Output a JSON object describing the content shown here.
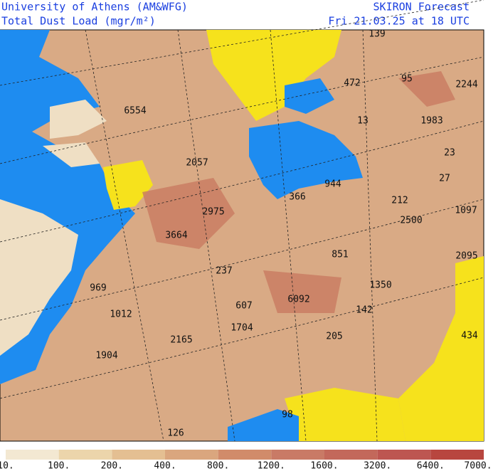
{
  "header": {
    "left": [
      "University of Athens (AM&WFG)",
      "Total Dust Load (mgr/m²)"
    ],
    "right": [
      "SKIRON Forecast",
      "Fri 21.03.25 at 18 UTC"
    ]
  },
  "map": {
    "labels": [
      139,
      6554,
      472,
      95,
      2244,
      13,
      1983,
      23,
      2057,
      27,
      366,
      944,
      212,
      2975,
      2500,
      1097,
      3664,
      851,
      2095,
      237,
      969,
      1350,
      607,
      6092,
      1012,
      142,
      1704,
      2165,
      205,
      434,
      1904,
      98,
      126
    ]
  },
  "colorbar": {
    "labels": [
      "10.",
      "100.",
      "200.",
      "400.",
      "800.",
      "1200.",
      "1600.",
      "3200.",
      "6400.",
      "7000."
    ],
    "colors": [
      "#f3e8d2",
      "#ecd5ab",
      "#e4bf92",
      "#daa67e",
      "#d18b6a",
      "#c97a66",
      "#c3685b",
      "#bd5651",
      "#b8463f"
    ]
  }
}
